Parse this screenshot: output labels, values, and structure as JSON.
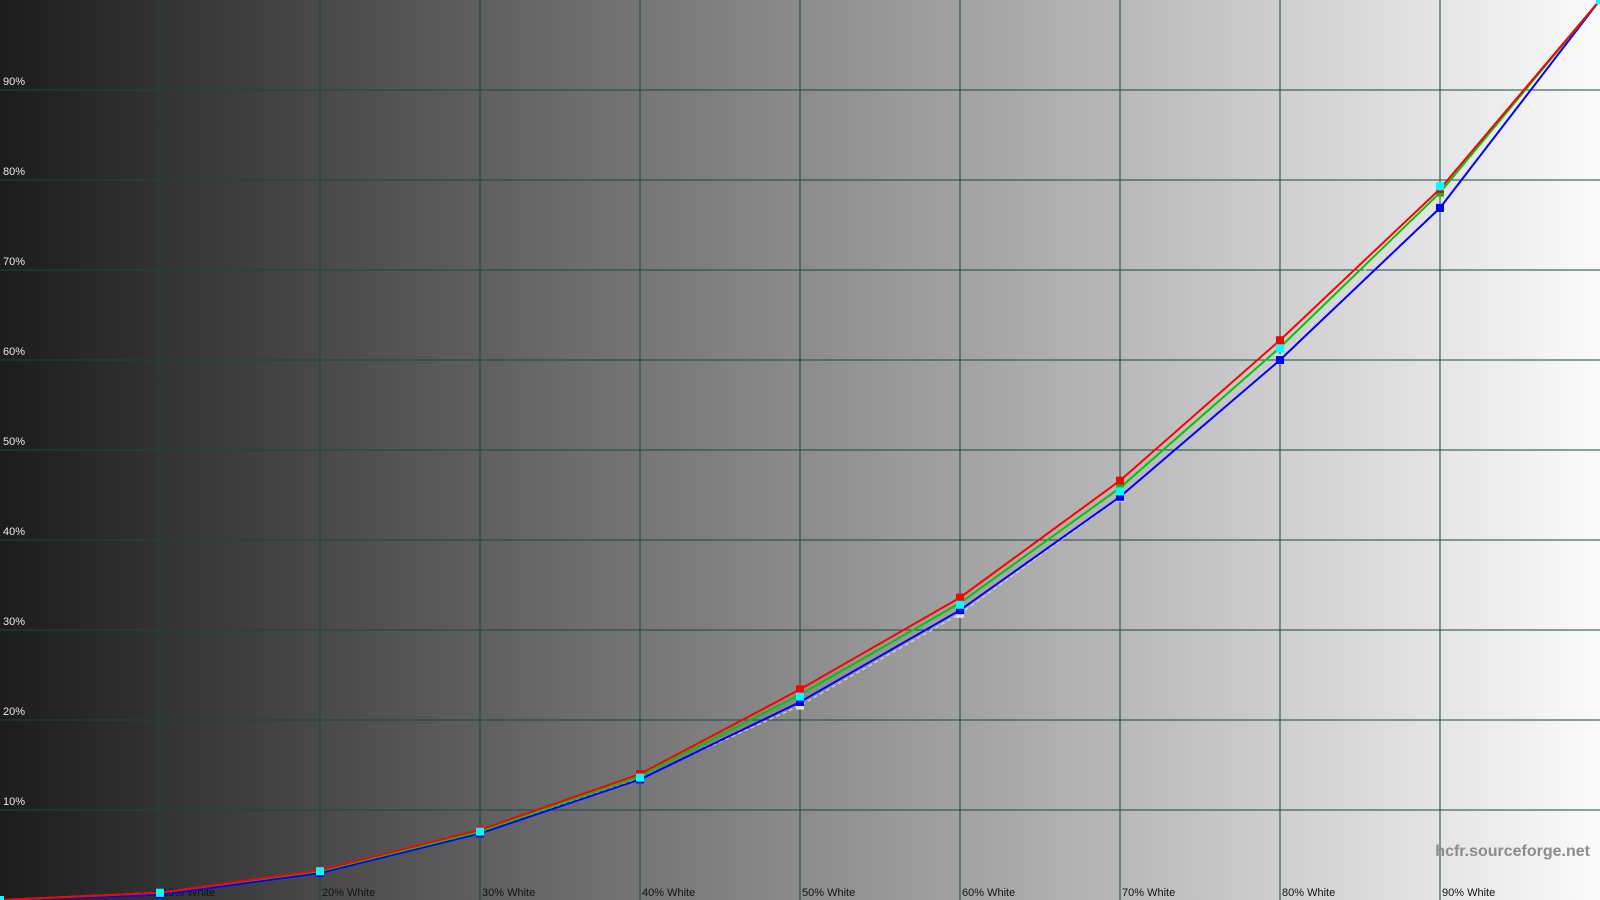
{
  "chart_data": {
    "type": "line",
    "watermark": "hcfr.sourceforge.net",
    "x": [
      0,
      10,
      20,
      30,
      40,
      50,
      60,
      70,
      80,
      90,
      100
    ],
    "xlim": [
      0,
      100
    ],
    "ylim": [
      0,
      100
    ],
    "xticks": [
      {
        "value": 10,
        "label": "10% White"
      },
      {
        "value": 20,
        "label": "20% White"
      },
      {
        "value": 30,
        "label": "30% White"
      },
      {
        "value": 40,
        "label": "40% White"
      },
      {
        "value": 50,
        "label": "50% White"
      },
      {
        "value": 60,
        "label": "60% White"
      },
      {
        "value": 70,
        "label": "70% White"
      },
      {
        "value": 80,
        "label": "80% White"
      },
      {
        "value": 90,
        "label": "90% White"
      }
    ],
    "yticks": [
      {
        "value": 10,
        "label": "10%"
      },
      {
        "value": 20,
        "label": "20%"
      },
      {
        "value": 30,
        "label": "30%"
      },
      {
        "value": 40,
        "label": "40%"
      },
      {
        "value": 50,
        "label": "50%"
      },
      {
        "value": 60,
        "label": "60%"
      },
      {
        "value": 70,
        "label": "70%"
      },
      {
        "value": 80,
        "label": "80%"
      },
      {
        "value": 90,
        "label": "90%"
      }
    ],
    "grid": true,
    "series": [
      {
        "color": "#e0e0e0",
        "dashed": true,
        "values": [
          0,
          0.7,
          3,
          7.5,
          13.5,
          21.6,
          31.8,
          44.7,
          60.2,
          78.6,
          100
        ]
      },
      {
        "color": "#0000ff",
        "values": [
          0,
          0.6,
          3,
          7.4,
          13.4,
          22,
          32.2,
          44.8,
          60,
          76.9,
          100
        ]
      },
      {
        "color": "#00c800",
        "values": [
          0,
          0.8,
          3.2,
          7.6,
          13.8,
          22.8,
          33,
          45.8,
          61.4,
          78.6,
          100
        ]
      },
      {
        "color": "#ff0000",
        "values": [
          0,
          0.8,
          3.3,
          7.8,
          14,
          23.4,
          33.6,
          46.6,
          62.2,
          79,
          100
        ]
      },
      {
        "color": "#00ffff",
        "markers_only": true,
        "values": [
          0,
          0.8,
          3.2,
          7.6,
          13.6,
          22.6,
          32.8,
          45.4,
          61.3,
          79.3,
          100
        ]
      }
    ]
  }
}
